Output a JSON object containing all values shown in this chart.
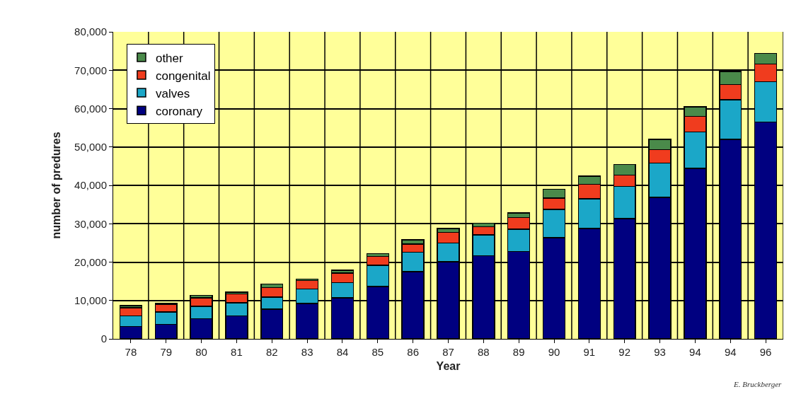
{
  "chart_data": {
    "type": "bar",
    "stacked": true,
    "xlabel": "Year",
    "ylabel": "number of predures",
    "categories": [
      "78",
      "79",
      "80",
      "81",
      "82",
      "83",
      "84",
      "85",
      "86",
      "87",
      "88",
      "89",
      "90",
      "91",
      "92",
      "93",
      "94",
      "94",
      "96"
    ],
    "series": [
      {
        "name": "coronary",
        "color": "#000080",
        "values": [
          3200,
          3800,
          5300,
          6000,
          7700,
          9200,
          10700,
          13600,
          17500,
          20100,
          21700,
          22800,
          26400,
          28800,
          31300,
          36900,
          44400,
          52000,
          56500
        ]
      },
      {
        "name": "valves",
        "color": "#1ba7c8",
        "values": [
          2800,
          3200,
          3200,
          3400,
          3200,
          3800,
          4000,
          5600,
          5100,
          4900,
          5400,
          5800,
          7300,
          7700,
          8400,
          8900,
          9500,
          10300,
          10500
        ]
      },
      {
        "name": "congenital",
        "color": "#f03c1e",
        "values": [
          2100,
          1900,
          2200,
          2300,
          2500,
          2200,
          2400,
          2300,
          2100,
          2700,
          2100,
          3000,
          3000,
          3800,
          3000,
          3500,
          4100,
          4000,
          4600
        ]
      },
      {
        "name": "other",
        "color": "#4a8a4a",
        "values": [
          600,
          300,
          600,
          500,
          900,
          400,
          800,
          700,
          1100,
          1100,
          900,
          1200,
          2300,
          2100,
          2700,
          2700,
          2500,
          3400,
          2800
        ]
      }
    ],
    "ylim": [
      0,
      80000
    ],
    "yticks": [
      {
        "value": 0,
        "label": "0"
      },
      {
        "value": 10000,
        "label": "10,000"
      },
      {
        "value": 20000,
        "label": "20,000"
      },
      {
        "value": 30000,
        "label": "30,000"
      },
      {
        "value": 40000,
        "label": "40,000"
      },
      {
        "value": 50000,
        "label": "50,000"
      },
      {
        "value": 60000,
        "label": "60,000"
      },
      {
        "value": 70000,
        "label": "70,000"
      },
      {
        "value": 80000,
        "label": "80,000"
      }
    ],
    "grid": true,
    "legend": "top left",
    "annotations": [
      "E. Bruckberger"
    ]
  }
}
